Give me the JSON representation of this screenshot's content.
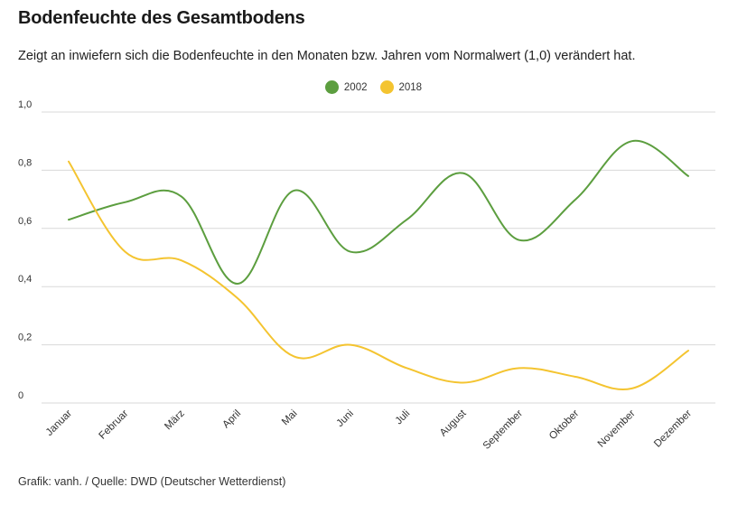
{
  "title": "Bodenfeuchte des Gesamtbodens",
  "subtitle": "Zeigt an inwiefern sich die Bodenfeuchte in den Monaten bzw. Jahren vom Normalwert (1,0) verändert hat.",
  "footer": "Grafik: vanh. / Quelle: DWD (Deutscher Wetterdienst)",
  "colors": {
    "grid": "#d9d9d9",
    "axis": "#cccccc"
  },
  "chart_data": {
    "type": "line",
    "title": "Bodenfeuchte des Gesamtbodens",
    "xlabel": "",
    "ylabel": "",
    "ylim": [
      0,
      1.0
    ],
    "yticks": [
      {
        "value": 0,
        "label": "0"
      },
      {
        "value": 0.2,
        "label": "0,2"
      },
      {
        "value": 0.4,
        "label": "0,4"
      },
      {
        "value": 0.6,
        "label": "0,6"
      },
      {
        "value": 0.8,
        "label": "0,8"
      },
      {
        "value": 1.0,
        "label": "1,0"
      }
    ],
    "grid": true,
    "legend": "top-center",
    "categories": [
      "Januar",
      "Februar",
      "März",
      "April",
      "Mai",
      "Juni",
      "Juli",
      "August",
      "September",
      "Oktober",
      "November",
      "Dezember"
    ],
    "series": [
      {
        "name": "2002",
        "color": "#5c9e3f",
        "values": [
          0.63,
          0.69,
          0.71,
          0.41,
          0.73,
          0.52,
          0.63,
          0.79,
          0.56,
          0.7,
          0.9,
          0.78
        ]
      },
      {
        "name": "2018",
        "color": "#f4c430",
        "values": [
          0.83,
          0.52,
          0.49,
          0.36,
          0.16,
          0.2,
          0.12,
          0.07,
          0.12,
          0.09,
          0.05,
          0.18
        ]
      }
    ]
  }
}
